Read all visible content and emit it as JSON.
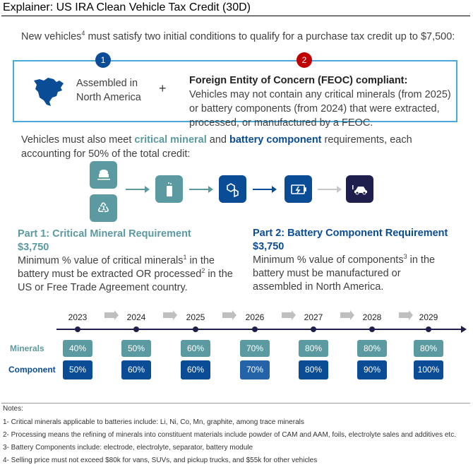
{
  "title": "Explainer: US IRA Clean Vehicle Tax Credit (30D)",
  "intro": {
    "pre": "New vehicles",
    "sup": "4",
    "post": " must satisfy two initial conditions to qualify for a purchase tax credit up to $7,500:"
  },
  "conditions": {
    "one": {
      "badge": "1",
      "text_line1": "Assembled in",
      "text_line2": "North America",
      "icon": "north-america-map"
    },
    "plus": "+",
    "two": {
      "badge": "2",
      "heading": "Foreign Entity of Concern (FEOC) compliant:",
      "text": "Vehicles may not contain any critical minerals (from 2025) or battery components (from 2024) that were extracted, processed, or manufactured by a FEOC."
    }
  },
  "requirements": {
    "pre": "Vehicles must also meet ",
    "mineral": "critical mineral",
    "and": " and ",
    "component": "battery component",
    "post": " requirements, each accounting for 50% of the total credit:"
  },
  "flow_icons": [
    "mine-cart",
    "recycle",
    "test-tube",
    "molecule",
    "battery",
    "electric-car"
  ],
  "part1": {
    "heading": "Part 1: Critical Mineral Requirement",
    "amount": "$3,750",
    "t1": "Minimum % value of critical minerals",
    "sup1": "1",
    "t2": " in the battery must be extracted OR processed",
    "sup2": "2",
    "t3": " in the US or Free Trade Agreement country."
  },
  "part2": {
    "heading": "Part 2: Battery Component Requirement",
    "amount": "$3,750",
    "t1": "Minimum % value of components",
    "sup1": "3",
    "t2": " in the battery must be manufactured or assembled in North America."
  },
  "timeline": {
    "minerals_label": "Minerals",
    "component_label": "Component",
    "years": [
      "2023",
      "2024",
      "2025",
      "2026",
      "2027",
      "2028",
      "2029"
    ],
    "minerals": [
      "40%",
      "50%",
      "60%",
      "70%",
      "80%",
      "80%",
      "80%"
    ],
    "component": [
      "50%",
      "60%",
      "60%",
      "70%",
      "80%",
      "90%",
      "100%"
    ]
  },
  "notes": {
    "heading": "Notes:",
    "items": [
      "1- Critical minerals applicable to batteries include: Li, Ni, Co, Mn, graphite, among trace minerals",
      "2- Processing means the refining of minerals into constituent materials include powder of CAM and AAM, foils, electrolyte sales and additives etc.",
      "3- Battery Components include: electrode, electrolyte, separator, battery module",
      "4- Selling price must not exceed $80k for vans, SUVs, and pickup trucks, and $55k for other vehicles"
    ]
  },
  "colors": {
    "teal": "#5b9aa0",
    "blue": "#0a4c96",
    "navy": "#1f1f4d",
    "red": "#c00000",
    "box_border": "#4aa8d8"
  }
}
